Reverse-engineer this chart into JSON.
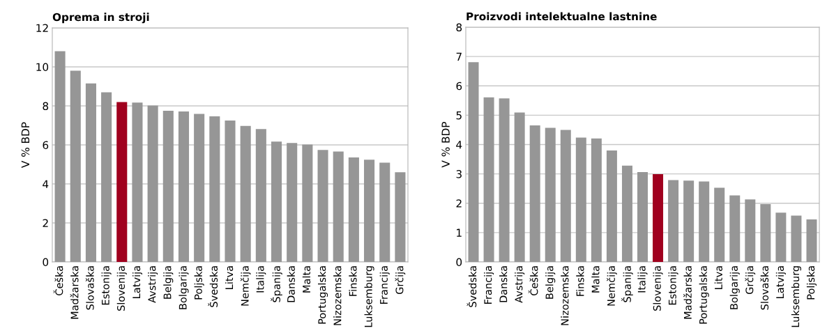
{
  "chart_data": [
    {
      "type": "bar",
      "title": "Oprema in stroji",
      "ylabel": "V % BDP",
      "categories": [
        "Češka",
        "Madžarska",
        "Slovaška",
        "Estonija",
        "Slovenija",
        "Latvija",
        "Avstrija",
        "Belgija",
        "Bolgarija",
        "Poljska",
        "Švedska",
        "Litva",
        "Nemčija",
        "Italija",
        "Španija",
        "Danska",
        "Malta",
        "Portugalska",
        "Nizozemska",
        "Finska",
        "Luksemburg",
        "Francija",
        "Grčija"
      ],
      "values": [
        10.8,
        9.8,
        9.15,
        8.7,
        8.2,
        8.17,
        8.02,
        7.75,
        7.71,
        7.59,
        7.46,
        7.25,
        6.97,
        6.81,
        6.17,
        6.1,
        6.02,
        5.74,
        5.66,
        5.36,
        5.24,
        5.09,
        4.6
      ],
      "colors": [
        "#969696",
        "#969696",
        "#969696",
        "#969696",
        "#a0001e",
        "#969696",
        "#969696",
        "#969696",
        "#969696",
        "#969696",
        "#969696",
        "#969696",
        "#969696",
        "#969696",
        "#969696",
        "#969696",
        "#969696",
        "#969696",
        "#969696",
        "#969696",
        "#969696",
        "#969696",
        "#969696"
      ],
      "ylim": [
        0,
        12
      ],
      "yticks": [
        0,
        2,
        4,
        6,
        8,
        10,
        12
      ],
      "grid": "y"
    },
    {
      "type": "bar",
      "title": "Proizvodi intelektualne lastnine",
      "ylabel": "V % BDP",
      "categories": [
        "Švedska",
        "Francija",
        "Danska",
        "Avstrija",
        "Češka",
        "Belgija",
        "Nizozemska",
        "Finska",
        "Malta",
        "Nemčija",
        "Španija",
        "Italija",
        "Slovenija",
        "Estonija",
        "Madžarska",
        "Portugalska",
        "Litva",
        "Bolgarija",
        "Grčija",
        "Slovaška",
        "Latvija",
        "Luksemburg",
        "Poljska"
      ],
      "values": [
        6.81,
        5.61,
        5.57,
        5.09,
        4.65,
        4.57,
        4.5,
        4.24,
        4.21,
        3.8,
        3.28,
        3.06,
        2.99,
        2.79,
        2.77,
        2.74,
        2.53,
        2.27,
        2.13,
        1.97,
        1.68,
        1.58,
        1.45
      ],
      "colors": [
        "#969696",
        "#969696",
        "#969696",
        "#969696",
        "#969696",
        "#969696",
        "#969696",
        "#969696",
        "#969696",
        "#969696",
        "#969696",
        "#969696",
        "#a0001e",
        "#969696",
        "#969696",
        "#969696",
        "#969696",
        "#969696",
        "#969696",
        "#969696",
        "#969696",
        "#969696",
        "#969696"
      ],
      "ylim": [
        0,
        8
      ],
      "yticks": [
        0,
        1,
        2,
        3,
        4,
        5,
        6,
        7,
        8
      ],
      "grid": "y"
    }
  ]
}
